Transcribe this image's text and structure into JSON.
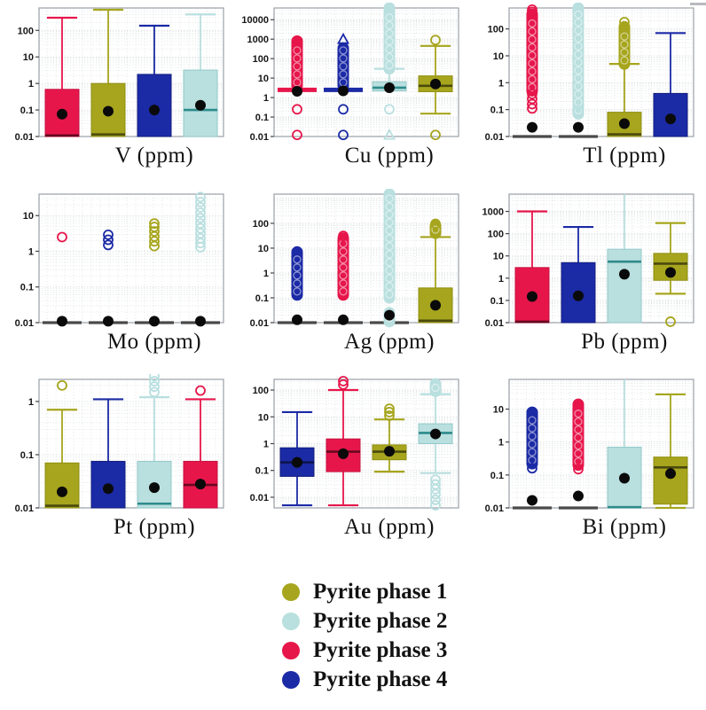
{
  "page": {
    "background": "#ffffff"
  },
  "phase_colors": {
    "1": "#a6a51d",
    "2": "#b9dfdf",
    "3": "#e6164b",
    "4": "#1b2aa5"
  },
  "phase_strokes": {
    "1": "#8f8f12",
    "2": "#93c9c9",
    "3": "#c51040",
    "4": "#131f7e"
  },
  "style_colors": {
    "median_teal": "#2e8b8b",
    "median_dark": "rgba(0,0,0,0.55)",
    "flat_gray": "#4a4a4a",
    "mean_dot": "#0a0a0a",
    "grid": "#cfd6d6",
    "frame": "#9aa0a8"
  },
  "legend": {
    "items": [
      {
        "label": "Pyrite phase 1",
        "phase": "1"
      },
      {
        "label": "Pyrite phase 2",
        "phase": "2"
      },
      {
        "label": "Pyrite phase 3",
        "phase": "3"
      },
      {
        "label": "Pyrite phase 4",
        "phase": "4"
      }
    ]
  },
  "chart_data": [
    {
      "type": "box",
      "title": "V (ppm)",
      "ylabel": "",
      "yscale": "log",
      "ylim": [
        0.01,
        700
      ],
      "yticks": [
        "100",
        "10",
        "1",
        "0.1",
        "0.01"
      ],
      "boxes": [
        {
          "phase": "3",
          "kind": "box",
          "q1": 0.01,
          "q3": 0.6,
          "median": 0.011,
          "mean": 0.07,
          "whisker_high": 300
        },
        {
          "phase": "1",
          "kind": "box",
          "q1": 0.01,
          "q3": 1.0,
          "median": 0.012,
          "mean": 0.09,
          "whisker_high": 600
        },
        {
          "phase": "4",
          "kind": "box",
          "q1": 0.01,
          "q3": 2.2,
          "mean": 0.1,
          "whisker_high": 150
        },
        {
          "phase": "2",
          "kind": "box",
          "q1": 0.01,
          "q3": 3.2,
          "median": 0.1,
          "mean": 0.15,
          "whisker_high": 400
        }
      ]
    },
    {
      "type": "box",
      "title": "Cu (ppm)",
      "ylabel": "",
      "yscale": "log",
      "ylim": [
        0.01,
        40000
      ],
      "yticks": [
        "10000",
        "1000",
        "100",
        "10",
        "1",
        "0.1",
        "0.01"
      ],
      "boxes": [
        {
          "phase": "3",
          "kind": "flat",
          "value": 2.5,
          "flat_colored": true,
          "mean": 2.1,
          "bands": [
            [
              4,
              800
            ]
          ],
          "circles": [
            0.25,
            0.012
          ]
        },
        {
          "phase": "4",
          "kind": "flat",
          "value": 2.5,
          "flat_colored": true,
          "mean": 2.2,
          "bands": [
            [
              4,
              350
            ]
          ],
          "circles": [
            0.25,
            0.012
          ],
          "triangles": [
            1000
          ]
        },
        {
          "phase": "2",
          "kind": "box",
          "q1": 2.2,
          "q3": 6.5,
          "median": 3.2,
          "mean": 3.2,
          "whisker_high": 30,
          "bands": [
            [
              30,
              40000
            ]
          ],
          "circles": [
            0.25
          ],
          "triangles": [
            0.012
          ]
        },
        {
          "phase": "1",
          "kind": "box",
          "q1": 2,
          "q3": 13,
          "median": 4,
          "mean": 5,
          "whisker_low": 0.15,
          "whisker_high": 450,
          "circles": [
            900,
            0.012
          ]
        }
      ]
    },
    {
      "type": "box",
      "title": "Tl (ppm)",
      "ylabel": "",
      "yscale": "log",
      "ylim": [
        0.01,
        600
      ],
      "yticks": [
        "100",
        "10",
        "1",
        "0.1",
        "0.01"
      ],
      "boxes": [
        {
          "phase": "3",
          "kind": "flat",
          "value": 0.01,
          "mean": 0.022,
          "bands": [
            [
              0.5,
              350
            ]
          ],
          "circles": [
            0.11,
            0.16,
            0.25,
            0.38,
            430,
            520
          ]
        },
        {
          "phase": "2",
          "kind": "flat",
          "value": 0.01,
          "mean": 0.022,
          "bands": [
            [
              0.07,
              600
            ]
          ],
          "circles": [
            0.09
          ]
        },
        {
          "phase": "1",
          "kind": "box",
          "q1": 0.01,
          "q3": 0.08,
          "median": 0.012,
          "mean": 0.03,
          "whisker_high": 5,
          "bands": [
            [
              5,
              120
            ]
          ],
          "circles": [
            180
          ]
        },
        {
          "phase": "4",
          "kind": "box",
          "q1": 0.01,
          "q3": 0.4,
          "mean": 0.045,
          "whisker_high": 70
        }
      ]
    },
    {
      "type": "box",
      "title": "Mo (ppm)",
      "ylabel": "",
      "yscale": "log",
      "ylim": [
        0.01,
        40
      ],
      "yticks": [
        "10",
        "1",
        "0.1",
        "0.01"
      ],
      "boxes": [
        {
          "phase": "3",
          "kind": "flat",
          "value": 0.01,
          "mean": 0.011,
          "circles": [
            2.5
          ]
        },
        {
          "phase": "4",
          "kind": "flat",
          "value": 0.01,
          "mean": 0.011,
          "circles": [
            1.5,
            2.1,
            2.9
          ]
        },
        {
          "phase": "1",
          "kind": "flat",
          "value": 0.01,
          "mean": 0.011,
          "circles": [
            1.4,
            1.9,
            2.6,
            3.6,
            4.8,
            6
          ]
        },
        {
          "phase": "2",
          "kind": "flat",
          "value": 0.01,
          "mean": 0.011,
          "circles": [
            1.3,
            1.7,
            2.3,
            3.2,
            4.4,
            6,
            8.5,
            12,
            17,
            24,
            33
          ]
        }
      ]
    },
    {
      "type": "box",
      "title": "Ag (ppm)",
      "ylabel": "",
      "yscale": "log",
      "ylim": [
        0.01,
        1500
      ],
      "yticks": [
        "100",
        "10",
        "1",
        "0.1",
        "0.01"
      ],
      "boxes": [
        {
          "phase": "4",
          "kind": "flat",
          "value": 0.01,
          "mean": 0.013,
          "bands": [
            [
              0.13,
              7
            ]
          ]
        },
        {
          "phase": "3",
          "kind": "flat",
          "value": 0.01,
          "mean": 0.013,
          "bands": [
            [
              0.13,
              25
            ]
          ],
          "circles": [
            31
          ]
        },
        {
          "phase": "2",
          "kind": "flat",
          "value": 0.01,
          "mean": 0.02,
          "bands": [
            [
              0.1,
              1500
            ],
            [
              0.011,
              0.025
            ]
          ]
        },
        {
          "phase": "1",
          "kind": "box",
          "q1": 0.01,
          "q3": 0.25,
          "median": 0.012,
          "mean": 0.05,
          "whisker_high": 28,
          "bands": [
            [
              40,
              80
            ]
          ],
          "circles": [
            95
          ]
        }
      ]
    },
    {
      "type": "box",
      "title": "Pb (ppm)",
      "ylabel": "",
      "yscale": "log",
      "ylim": [
        0.01,
        6000
      ],
      "yticks": [
        "1000",
        "100",
        "10",
        "1",
        "0.1",
        "0.01"
      ],
      "boxes": [
        {
          "phase": "3",
          "kind": "box",
          "q1": 0.01,
          "q3": 3,
          "median": 0.011,
          "mean": 0.15,
          "whisker_high": 1000
        },
        {
          "phase": "4",
          "kind": "box",
          "q1": 0.01,
          "q3": 5,
          "mean": 0.16,
          "whisker_high": 200
        },
        {
          "phase": "2",
          "kind": "box",
          "q1": 0.01,
          "q3": 20,
          "median": 5.5,
          "mean": 1.5,
          "whisker_high": 6000
        },
        {
          "phase": "1",
          "kind": "box",
          "q1": 0.8,
          "q3": 13,
          "median": 4.5,
          "mean": 1.8,
          "whisker_low": 0.2,
          "whisker_high": 300,
          "circles": [
            0.011
          ]
        }
      ]
    },
    {
      "type": "box",
      "title": "Pt (ppm)",
      "ylabel": "",
      "yscale": "log",
      "ylim": [
        0.01,
        2.6
      ],
      "yticks": [
        "1",
        "0.1",
        "0.01"
      ],
      "boxes": [
        {
          "phase": "1",
          "kind": "box",
          "q1": 0.01,
          "q3": 0.07,
          "median": 0.011,
          "mean": 0.02,
          "whisker_high": 0.7,
          "circles": [
            2.0
          ]
        },
        {
          "phase": "4",
          "kind": "box",
          "q1": 0.01,
          "q3": 0.075,
          "mean": 0.023,
          "whisker_high": 1.1
        },
        {
          "phase": "2",
          "kind": "box",
          "q1": 0.01,
          "q3": 0.075,
          "median": 0.012,
          "mean": 0.024,
          "whisker_high": 1.2,
          "circles": [
            1.5,
            1.9,
            2.4,
            3.0
          ]
        },
        {
          "phase": "3",
          "kind": "box",
          "q1": 0.01,
          "q3": 0.075,
          "median": 0.027,
          "mean": 0.028,
          "whisker_high": 1.1,
          "circles": [
            1.6
          ]
        }
      ]
    },
    {
      "type": "box",
      "title": "Au (ppm)",
      "ylabel": "",
      "yscale": "log",
      "ylim": [
        0.004,
        250
      ],
      "yticks": [
        "100",
        "10",
        "1",
        "0.1",
        "0.01"
      ],
      "boxes": [
        {
          "phase": "4",
          "kind": "box",
          "q1": 0.06,
          "q3": 0.7,
          "median": 0.2,
          "mean": 0.2,
          "whisker_low": 0.005,
          "whisker_high": 15
        },
        {
          "phase": "3",
          "kind": "box",
          "q1": 0.09,
          "q3": 1.5,
          "median": 0.5,
          "mean": 0.42,
          "whisker_low": 0.005,
          "whisker_high": 100,
          "circles": [
            160,
            215
          ]
        },
        {
          "phase": "1",
          "kind": "box",
          "q1": 0.25,
          "q3": 0.9,
          "median": 0.5,
          "mean": 0.52,
          "whisker_low": 0.09,
          "whisker_high": 8,
          "circles": [
            11,
            15,
            20
          ]
        },
        {
          "phase": "2",
          "kind": "box",
          "q1": 1.0,
          "q3": 5.5,
          "median": 2.5,
          "mean": 2.3,
          "whisker_low": 0.08,
          "whisker_high": 70,
          "bands": [
            [
              90,
              170
            ]
          ],
          "circles": [
            0.005,
            0.008,
            0.013,
            0.02,
            0.03,
            0.045
          ]
        }
      ]
    },
    {
      "type": "box",
      "title": "Bi (ppm)",
      "ylabel": "",
      "yscale": "log",
      "ylim": [
        0.01,
        80
      ],
      "yticks": [
        "10",
        "1",
        "0.1",
        "0.01"
      ],
      "boxes": [
        {
          "phase": "4",
          "kind": "flat",
          "value": 0.01,
          "mean": 0.017,
          "bands": [
            [
              0.22,
              8
            ]
          ],
          "circles": [
            0.16
          ]
        },
        {
          "phase": "3",
          "kind": "flat",
          "value": 0.01,
          "mean": 0.023,
          "bands": [
            [
              0.2,
              14
            ]
          ],
          "circles": [
            0.15
          ]
        },
        {
          "phase": "2",
          "kind": "box",
          "q1": 0.01,
          "q3": 0.7,
          "median": 0.0105,
          "mean": 0.08,
          "whisker_high": 80
        },
        {
          "phase": "1",
          "kind": "box",
          "q1": 0.013,
          "q3": 0.35,
          "median": 0.17,
          "mean": 0.11,
          "whisker_low": 0.01,
          "whisker_high": 28
        }
      ]
    }
  ]
}
